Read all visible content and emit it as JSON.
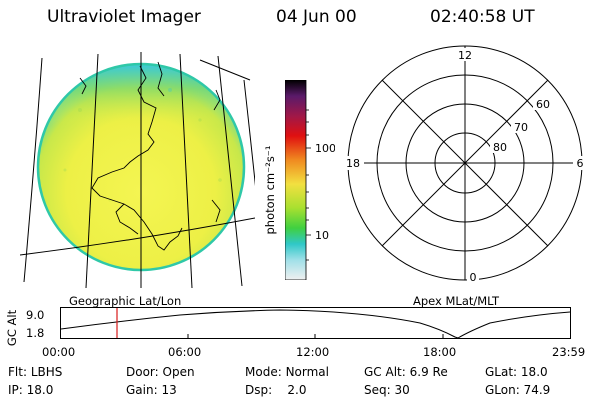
{
  "header": {
    "title": "Ultraviolet Imager",
    "date": "04 Jun 00",
    "time": "02:40:58 UT"
  },
  "colorbar": {
    "unit_label": "photon cm⁻²s⁻¹",
    "tick_labels": [
      "100",
      "10"
    ]
  },
  "polar_plot": {
    "mlt_labels": {
      "top": "12",
      "left": "18",
      "right": "6",
      "bottom": "0"
    },
    "lat_labels": [
      "60",
      "70",
      "80"
    ]
  },
  "map_labels": {
    "left": "Geographic Lat/Lon",
    "right": "Apex MLat/MLT"
  },
  "altitude_plot": {
    "y_label": "GC Alt",
    "y_ticks": [
      "9.0",
      "1.8"
    ],
    "x_ticks": [
      "00:00",
      "06:00",
      "12:00",
      "18:00",
      "23:59"
    ]
  },
  "info": {
    "row1": [
      {
        "label": "Flt:",
        "value": "LBHS"
      },
      {
        "label": "Door:",
        "value": "Open"
      },
      {
        "label": "Mode:",
        "value": "Normal"
      },
      {
        "label": "GC Alt:",
        "value": "6.9 Re"
      },
      {
        "label": "GLat:",
        "value": "18.0"
      }
    ],
    "row2": [
      {
        "label": "IP:",
        "value": "18.0"
      },
      {
        "label": "Gain:",
        "value": "13"
      },
      {
        "label": "Dsp:",
        "value": "2.0"
      },
      {
        "label": "Seq:",
        "value": "30"
      },
      {
        "label": "GLon:",
        "value": "74.9"
      }
    ]
  },
  "colors": {
    "disk_fill": "#eef040",
    "disk_edge": "#2fc8a8",
    "polar_lines": "#000000",
    "time_marker": "#d81a1a"
  }
}
